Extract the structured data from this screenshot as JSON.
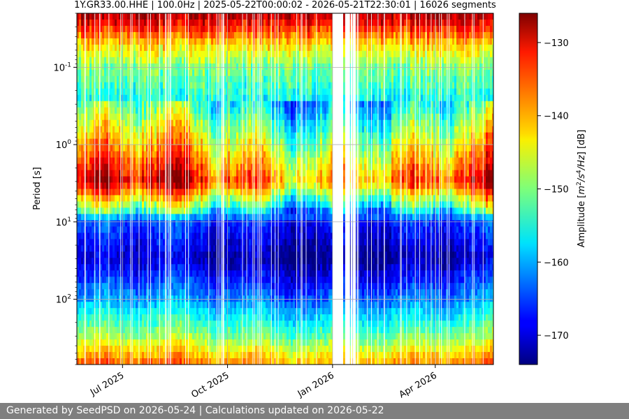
{
  "chart_data": {
    "type": "heatmap",
    "title": "1Y.GR33.00.HHE | 100.0Hz | 2025-05-22T00:00:02 - 2026-05-21T22:30:01 | 16026 segments",
    "xlabel": "",
    "ylabel": "Period [s]",
    "x_range": [
      "2025-05-22T00:00:02",
      "2026-05-21T22:30:01"
    ],
    "x_ticks": [
      {
        "label": "Jul 2025",
        "date": "2025-07-01"
      },
      {
        "label": "Oct 2025",
        "date": "2025-10-01"
      },
      {
        "label": "Jan 2026",
        "date": "2026-01-01"
      },
      {
        "label": "Apr 2026",
        "date": "2026-04-01"
      }
    ],
    "y_scale": "log",
    "y_inverted": true,
    "y_range": [
      0.02,
      700
    ],
    "y_ticks": [
      {
        "exp": "-1",
        "value": 0.1
      },
      {
        "exp": "0",
        "value": 1
      },
      {
        "exp": "1",
        "value": 10
      },
      {
        "exp": "2",
        "value": 100
      }
    ],
    "grid": true,
    "colormap": "jet",
    "colorbar": {
      "label": "Amplitude [m2/s4/Hz] [dB]",
      "range": [
        -174,
        -126
      ],
      "ticks": [
        "−130",
        "−140",
        "−150",
        "−160",
        "−170"
      ],
      "tick_values": [
        -130,
        -140,
        -150,
        -160,
        -170
      ]
    },
    "data_gaps": [
      [
        "2026-01-01",
        "2026-01-04"
      ],
      [
        "2026-01-05",
        "2026-01-10"
      ],
      [
        "2026-01-12",
        "2026-01-16"
      ],
      [
        "2026-01-17",
        "2026-01-18"
      ],
      [
        "2026-01-19",
        "2026-01-21"
      ]
    ],
    "psd_profile": [
      {
        "period": 0.02,
        "db": -128
      },
      {
        "period": 0.03,
        "db": -133
      },
      {
        "period": 0.05,
        "db": -142
      },
      {
        "period": 0.1,
        "db": -150
      },
      {
        "period": 0.3,
        "db": -156
      },
      {
        "period": 1.0,
        "db": -145
      },
      {
        "period": 3.0,
        "db": -135
      },
      {
        "period": 6.0,
        "db": -152
      },
      {
        "period": 10.0,
        "db": -166
      },
      {
        "period": 30.0,
        "db": -172
      },
      {
        "period": 100.0,
        "db": -162
      },
      {
        "period": 300.0,
        "db": -150
      },
      {
        "period": 700.0,
        "db": -138
      }
    ]
  },
  "footer": {
    "text": "Generated by SeedPSD on 2026-05-24 | Calculations updated on 2026-05-22"
  }
}
